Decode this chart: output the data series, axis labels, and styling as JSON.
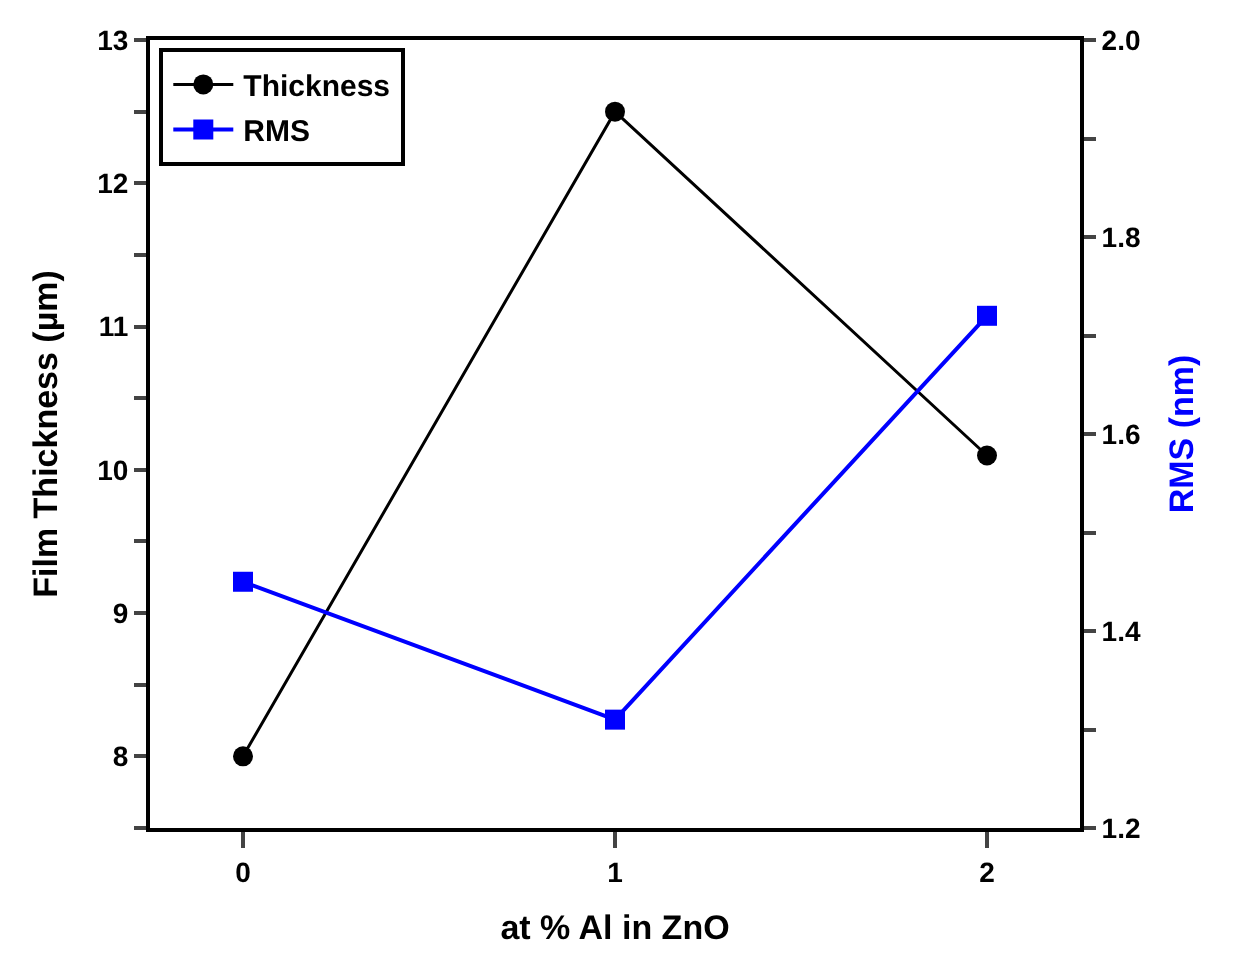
{
  "chart_data": {
    "type": "line",
    "xlabel": "at % Al in ZnO",
    "ylabel": "Film Thickness (µm)",
    "y2label": "RMS (nm)",
    "x": [
      0,
      1,
      2
    ],
    "series": [
      {
        "name": "Thickness",
        "color": "#000000",
        "values": [
          8.0,
          12.5,
          10.1
        ],
        "marker": "circle"
      },
      {
        "name": "RMS",
        "color": "#0000ff",
        "values": [
          1.45,
          1.31,
          1.72
        ],
        "marker": "square",
        "axis": "y2"
      }
    ],
    "xlim": [
      -0.25,
      2.25
    ],
    "xticks": [
      0,
      1,
      2
    ],
    "ylim": [
      7.5,
      13
    ],
    "yticks": [
      {
        "value": 7.5,
        "label": null
      },
      8,
      {
        "value": 8.5,
        "label": null
      },
      9,
      {
        "value": 9.5,
        "label": null
      },
      10,
      {
        "value": 10.5,
        "label": null
      },
      11,
      {
        "value": 11.5,
        "label": null
      },
      12,
      {
        "value": 12.5,
        "label": null
      },
      13
    ],
    "y2lim": [
      1.2,
      2.0
    ],
    "y2ticks": [
      {
        "value": 1.2,
        "label": "1.2"
      },
      {
        "value": 1.3,
        "label": null
      },
      {
        "value": 1.4,
        "label": "1.4"
      },
      {
        "value": 1.5,
        "label": null
      },
      {
        "value": 1.6,
        "label": "1.6"
      },
      {
        "value": 1.7,
        "label": null
      },
      {
        "value": 1.8,
        "label": "1.8"
      },
      {
        "value": 1.9,
        "label": null
      },
      {
        "value": 2.0,
        "label": "2.0"
      }
    ],
    "legend": "top left",
    "line_style": "solid"
  }
}
